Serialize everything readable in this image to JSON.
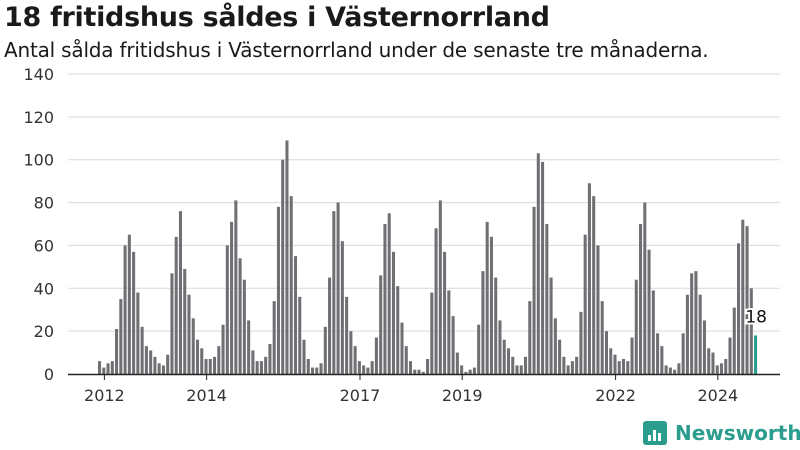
{
  "title": "18 fritidshus såldes i Västernorrland",
  "subtitle": "Antal sålda fritidshus i Västernorrland under de senaste tre månaderna.",
  "brand": {
    "name": "Newsworthy",
    "icon": "newsworthy-logo-icon"
  },
  "colors": {
    "bar": "#706f73",
    "highlight": "#2a9d8f",
    "grid": "#d9d9d9",
    "axis": "#222222",
    "text": "#333333"
  },
  "chart_data": {
    "type": "bar",
    "title": "18 fritidshus såldes i Västernorrland",
    "subtitle": "Antal sålda fritidshus i Västernorrland under de senaste tre månaderna.",
    "xlabel": "",
    "ylabel": "",
    "ylim": [
      0,
      140
    ],
    "yticks": [
      0,
      20,
      40,
      60,
      80,
      100,
      120,
      140
    ],
    "grid": true,
    "start": "2011-12",
    "frequency": "monthly",
    "xticks": [
      {
        "label": "2012",
        "at": "2012-01"
      },
      {
        "label": "2014",
        "at": "2014-01"
      },
      {
        "label": "2017",
        "at": "2017-01"
      },
      {
        "label": "2019",
        "at": "2019-01"
      },
      {
        "label": "2022",
        "at": "2022-01"
      },
      {
        "label": "2024",
        "at": "2024-01"
      }
    ],
    "values": [
      6,
      3,
      5,
      6,
      21,
      35,
      60,
      65,
      57,
      38,
      22,
      13,
      11,
      8,
      5,
      4,
      9,
      47,
      64,
      76,
      49,
      37,
      26,
      16,
      12,
      7,
      7,
      8,
      13,
      23,
      60,
      71,
      81,
      54,
      44,
      25,
      11,
      6,
      6,
      8,
      14,
      34,
      78,
      100,
      109,
      83,
      55,
      36,
      16,
      7,
      3,
      3,
      5,
      22,
      45,
      76,
      80,
      62,
      36,
      20,
      13,
      6,
      4,
      3,
      6,
      17,
      46,
      70,
      75,
      57,
      41,
      24,
      13,
      6,
      2,
      2,
      1,
      7,
      38,
      68,
      81,
      57,
      39,
      27,
      10,
      4,
      1,
      2,
      3,
      23,
      48,
      71,
      64,
      45,
      25,
      16,
      12,
      8,
      4,
      4,
      8,
      34,
      78,
      103,
      99,
      70,
      45,
      26,
      16,
      8,
      4,
      6,
      8,
      29,
      65,
      89,
      83,
      60,
      34,
      20,
      12,
      9,
      6,
      7,
      6,
      17,
      44,
      70,
      80,
      58,
      39,
      19,
      13,
      4,
      3,
      2,
      5,
      19,
      37,
      47,
      48,
      37,
      25,
      12,
      10,
      4,
      5,
      7,
      17,
      31,
      61,
      72,
      69,
      40,
      18
    ],
    "highlight_last": true,
    "annotation": {
      "text": "18",
      "target": "last"
    }
  }
}
